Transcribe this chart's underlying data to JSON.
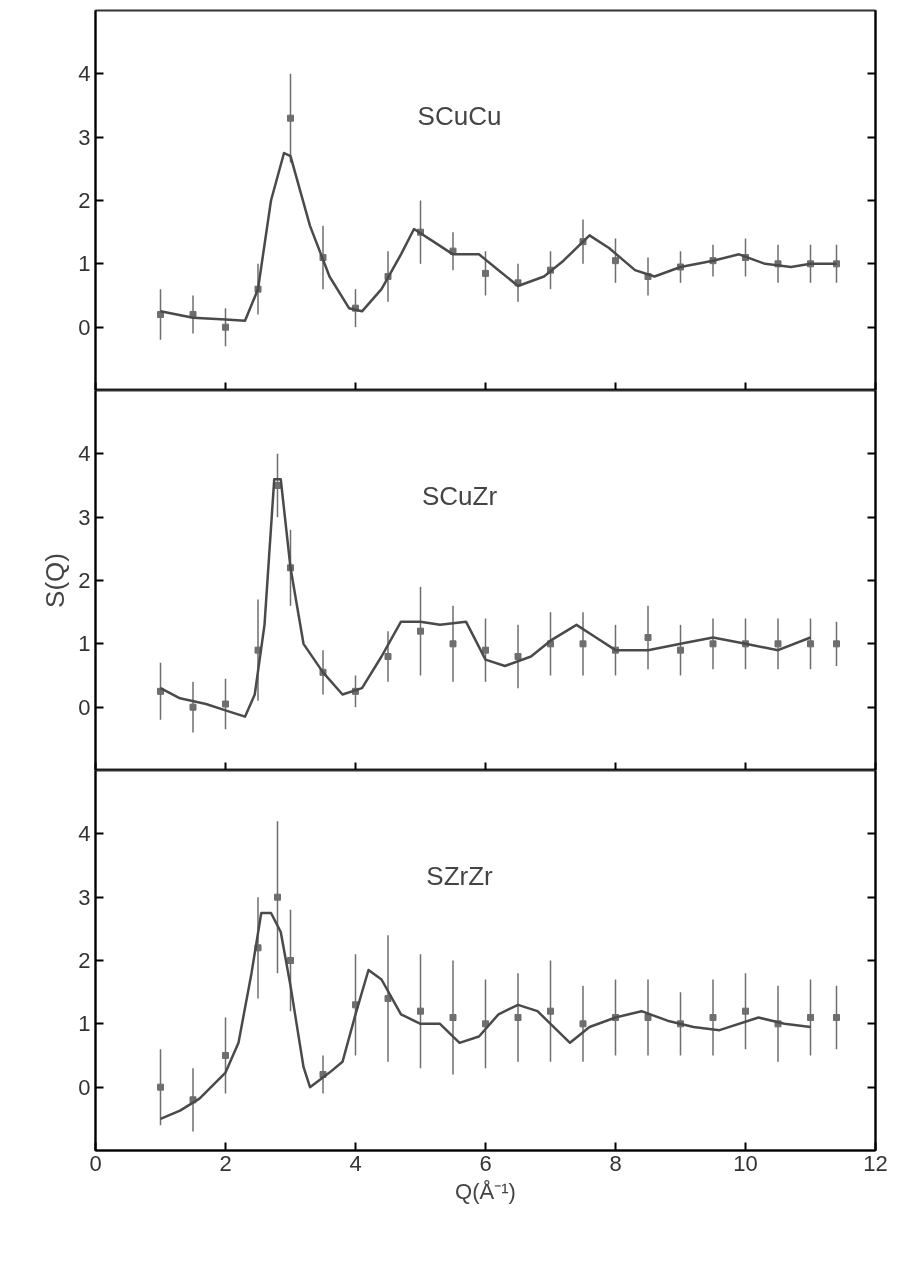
{
  "chart_data": [
    {
      "type": "line",
      "annotations": [
        "SCuCu"
      ],
      "xlim": [
        0,
        12
      ],
      "xticks": [
        0,
        2,
        4,
        6,
        8,
        10,
        12
      ],
      "ylim": [
        -1,
        5
      ],
      "yticks": [
        0,
        1,
        2,
        3,
        4
      ],
      "tick_labels": "y",
      "grid": false,
      "series": [
        {
          "type": "scatter",
          "marker": "square",
          "color": "#6e6e6e",
          "x": [
            1.0,
            1.5,
            2.0,
            2.5,
            3.0,
            3.5,
            4.0,
            4.5,
            5.0,
            5.5,
            6.0,
            6.5,
            7.0,
            7.5,
            8.0,
            8.5,
            9.0,
            9.5,
            10.0,
            10.5,
            11.0,
            11.4
          ],
          "values": [
            0.2,
            0.2,
            0.0,
            0.6,
            3.3,
            1.1,
            0.3,
            0.8,
            1.5,
            1.2,
            0.85,
            0.7,
            0.9,
            1.35,
            1.05,
            0.8,
            0.95,
            1.05,
            1.1,
            1.0,
            1.0,
            1.0
          ],
          "errors": [
            0.4,
            0.3,
            0.3,
            0.4,
            0.7,
            0.5,
            0.3,
            0.4,
            0.5,
            0.3,
            0.35,
            0.3,
            0.3,
            0.35,
            0.35,
            0.3,
            0.25,
            0.25,
            0.3,
            0.3,
            0.3,
            0.3
          ]
        },
        {
          "type": "line",
          "color": "#4a4a4a",
          "x": [
            1.0,
            1.5,
            2.0,
            2.3,
            2.5,
            2.7,
            2.9,
            3.0,
            3.3,
            3.6,
            3.9,
            4.1,
            4.4,
            4.7,
            4.9,
            5.2,
            5.5,
            5.9,
            6.2,
            6.5,
            6.9,
            7.2,
            7.6,
            7.9,
            8.3,
            8.6,
            9.0,
            9.5,
            9.9,
            10.3,
            10.7,
            11.0,
            11.4
          ],
          "values": [
            0.25,
            0.15,
            0.12,
            0.1,
            0.6,
            2.0,
            2.75,
            2.7,
            1.6,
            0.8,
            0.3,
            0.25,
            0.6,
            1.15,
            1.55,
            1.35,
            1.15,
            1.15,
            0.9,
            0.65,
            0.8,
            1.05,
            1.45,
            1.25,
            0.9,
            0.8,
            0.95,
            1.05,
            1.15,
            1.0,
            0.95,
            1.0,
            1.0
          ]
        }
      ]
    },
    {
      "type": "line",
      "annotations": [
        "SCuZr"
      ],
      "ylabel": "S(Q)",
      "xlim": [
        0,
        12
      ],
      "xticks": [
        0,
        2,
        4,
        6,
        8,
        10,
        12
      ],
      "ylim": [
        -1,
        5
      ],
      "yticks": [
        0,
        1,
        2,
        3,
        4
      ],
      "tick_labels": "y",
      "grid": false,
      "series": [
        {
          "type": "scatter",
          "marker": "square",
          "color": "#6e6e6e",
          "x": [
            1.0,
            1.5,
            2.0,
            2.5,
            2.8,
            3.0,
            3.5,
            4.0,
            4.5,
            5.0,
            5.5,
            6.0,
            6.5,
            7.0,
            7.5,
            8.0,
            8.5,
            9.0,
            9.5,
            10.0,
            10.5,
            11.0,
            11.4
          ],
          "values": [
            0.25,
            0.0,
            0.05,
            0.9,
            3.5,
            2.2,
            0.55,
            0.25,
            0.8,
            1.2,
            1.0,
            0.9,
            0.8,
            1.0,
            1.0,
            0.9,
            1.1,
            0.9,
            1.0,
            1.0,
            1.0,
            1.0,
            1.0
          ],
          "errors": [
            0.45,
            0.4,
            0.4,
            0.8,
            0.5,
            0.6,
            0.35,
            0.25,
            0.4,
            0.7,
            0.6,
            0.5,
            0.5,
            0.5,
            0.5,
            0.4,
            0.5,
            0.4,
            0.4,
            0.4,
            0.4,
            0.4,
            0.35
          ]
        },
        {
          "type": "line",
          "color": "#4a4a4a",
          "x": [
            1.0,
            1.3,
            1.7,
            2.0,
            2.3,
            2.45,
            2.6,
            2.75,
            2.85,
            3.0,
            3.2,
            3.5,
            3.8,
            4.1,
            4.4,
            4.7,
            5.0,
            5.3,
            5.7,
            6.0,
            6.3,
            6.7,
            7.0,
            7.4,
            7.7,
            8.0,
            8.5,
            9.0,
            9.5,
            10.0,
            10.5,
            11.0
          ],
          "values": [
            0.3,
            0.14,
            0.05,
            -0.05,
            -0.15,
            0.2,
            1.3,
            3.6,
            3.6,
            2.2,
            1.0,
            0.55,
            0.2,
            0.3,
            0.8,
            1.35,
            1.35,
            1.3,
            1.35,
            0.75,
            0.65,
            0.8,
            1.05,
            1.3,
            1.1,
            0.9,
            0.9,
            1.0,
            1.1,
            1.0,
            0.9,
            1.1
          ]
        }
      ]
    },
    {
      "type": "line",
      "annotations": [
        "SZrZr"
      ],
      "xlabel": "Q(Å⁻¹)",
      "xlim": [
        0,
        12
      ],
      "xticks": [
        0,
        2,
        4,
        6,
        8,
        10,
        12
      ],
      "ylim": [
        -1,
        5
      ],
      "yticks": [
        0,
        1,
        2,
        3,
        4
      ],
      "grid": false,
      "series": [
        {
          "type": "scatter",
          "marker": "square",
          "color": "#6e6e6e",
          "x": [
            1.0,
            1.5,
            2.0,
            2.5,
            2.8,
            3.0,
            3.5,
            4.0,
            4.5,
            5.0,
            5.5,
            6.0,
            6.5,
            7.0,
            7.5,
            8.0,
            8.5,
            9.0,
            9.5,
            10.0,
            10.5,
            11.0,
            11.4
          ],
          "values": [
            0.0,
            -0.2,
            0.5,
            2.2,
            3.0,
            2.0,
            0.2,
            1.3,
            1.4,
            1.2,
            1.1,
            1.0,
            1.1,
            1.2,
            1.0,
            1.1,
            1.1,
            1.0,
            1.1,
            1.2,
            1.0,
            1.1,
            1.1
          ],
          "errors": [
            0.6,
            0.5,
            0.6,
            0.8,
            1.2,
            0.8,
            0.3,
            0.8,
            1.0,
            0.9,
            0.9,
            0.7,
            0.7,
            0.8,
            0.6,
            0.6,
            0.6,
            0.5,
            0.6,
            0.6,
            0.6,
            0.6,
            0.5
          ]
        },
        {
          "type": "line",
          "color": "#4a4a4a",
          "x": [
            1.0,
            1.3,
            1.6,
            2.0,
            2.2,
            2.4,
            2.55,
            2.7,
            2.85,
            3.0,
            3.2,
            3.3,
            3.6,
            3.8,
            4.0,
            4.2,
            4.4,
            4.7,
            5.0,
            5.3,
            5.6,
            5.9,
            6.2,
            6.5,
            6.8,
            7.0,
            7.3,
            7.6,
            8.0,
            8.4,
            8.8,
            9.2,
            9.6,
            10.2,
            10.6,
            11.0
          ],
          "values": [
            -0.5,
            -0.37,
            -0.18,
            0.23,
            0.7,
            1.8,
            2.75,
            2.75,
            2.45,
            1.6,
            0.32,
            0.0,
            0.23,
            0.4,
            1.15,
            1.85,
            1.7,
            1.15,
            1.0,
            1.0,
            0.7,
            0.8,
            1.15,
            1.3,
            1.2,
            1.0,
            0.7,
            0.95,
            1.1,
            1.2,
            1.05,
            0.95,
            0.9,
            1.1,
            1.0,
            0.95
          ]
        }
      ]
    }
  ]
}
